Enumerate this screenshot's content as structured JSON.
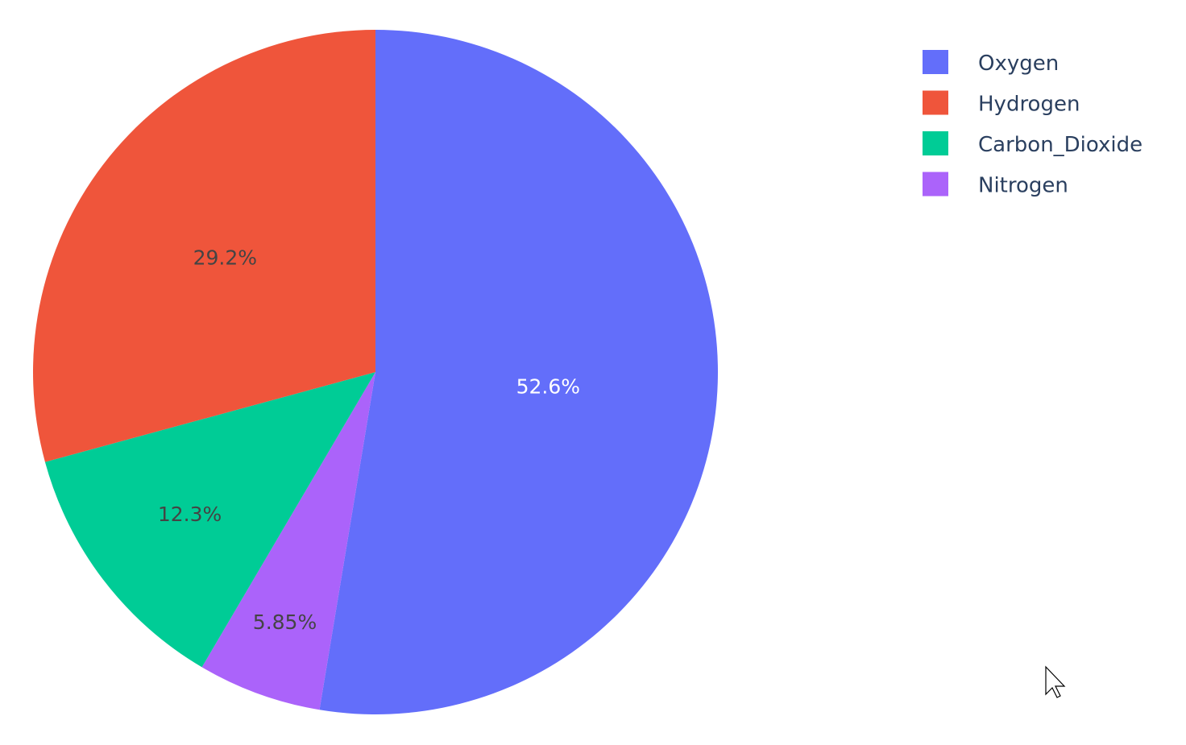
{
  "chart_data": {
    "type": "pie",
    "categories": [
      "Oxygen",
      "Hydrogen",
      "Carbon_Dioxide",
      "Nitrogen"
    ],
    "values": [
      4500,
      2500,
      1053,
      500
    ],
    "percent_labels": [
      "52.6%",
      "29.2%",
      "12.3%",
      "5.85%"
    ],
    "colors": [
      "#636efa",
      "#ef553b",
      "#00cc96",
      "#ab63fa"
    ],
    "label_colors": [
      "#ffffff",
      "#444444",
      "#444444",
      "#444444"
    ],
    "drawing_order_clockwise_from_top": [
      "Oxygen",
      "Nitrogen",
      "Carbon_Dioxide",
      "Hydrogen"
    ],
    "legend": {
      "position": "top-right",
      "entries": [
        "Oxygen",
        "Hydrogen",
        "Carbon_Dioxide",
        "Nitrogen"
      ]
    }
  }
}
